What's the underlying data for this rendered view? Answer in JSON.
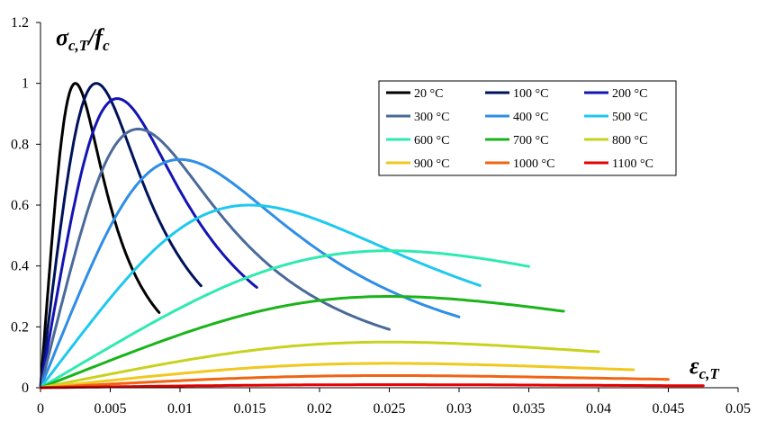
{
  "chart_data": {
    "type": "line",
    "title": "",
    "xlabel": {
      "main": "ε",
      "sub": "c,T"
    },
    "ylabel": {
      "main": "σ",
      "sub": "c,T",
      "rest": "/f",
      "rest_sub": "c"
    },
    "xlim": [
      0,
      0.05
    ],
    "ylim": [
      0,
      1.2
    ],
    "grid": "none",
    "legend_position": "top-right",
    "x_ticks": [
      0,
      0.005,
      0.01,
      0.015,
      0.02,
      0.025,
      0.03,
      0.035,
      0.04,
      0.045,
      0.05
    ],
    "x_tick_labels": [
      "0",
      "0.005",
      "0.01",
      "0.015",
      "0.02",
      "0.025",
      "0.03",
      "0.035",
      "0.04",
      "0.045",
      "0.05"
    ],
    "y_ticks": [
      0,
      0.2,
      0.4,
      0.6,
      0.8,
      1.0,
      1.2
    ],
    "y_tick_labels": [
      "0",
      "0.2",
      "0.4",
      "0.6",
      "0.8",
      "1",
      "1.2"
    ],
    "curve_model": "sigma/fc = 3*(eps/eps_peak)*k / (2 + (eps/eps_peak)^3)",
    "series": [
      {
        "name": "20 °C",
        "color": "#000000",
        "eps_peak": 0.0025,
        "peak": 1.0,
        "eps_end": 0.0085
      },
      {
        "name": "100 °C",
        "color": "#00135a",
        "eps_peak": 0.004,
        "peak": 1.0,
        "eps_end": 0.0115
      },
      {
        "name": "200 °C",
        "color": "#1414b4",
        "eps_peak": 0.0055,
        "peak": 0.95,
        "eps_end": 0.0155
      },
      {
        "name": "300 °C",
        "color": "#4a6a9a",
        "eps_peak": 0.007,
        "peak": 0.85,
        "eps_end": 0.025
      },
      {
        "name": "400 °C",
        "color": "#2e8ee6",
        "eps_peak": 0.01,
        "peak": 0.75,
        "eps_end": 0.03
      },
      {
        "name": "500 °C",
        "color": "#1ec8f0",
        "eps_peak": 0.015,
        "peak": 0.6,
        "eps_end": 0.0315
      },
      {
        "name": "600 °C",
        "color": "#2eeab0",
        "eps_peak": 0.025,
        "peak": 0.45,
        "eps_end": 0.035
      },
      {
        "name": "700 °C",
        "color": "#1ab41a",
        "eps_peak": 0.025,
        "peak": 0.3,
        "eps_end": 0.0375
      },
      {
        "name": "800 °C",
        "color": "#c8d21e",
        "eps_peak": 0.025,
        "peak": 0.15,
        "eps_end": 0.04
      },
      {
        "name": "900 °C",
        "color": "#f0c81e",
        "eps_peak": 0.025,
        "peak": 0.08,
        "eps_end": 0.0425
      },
      {
        "name": "1000 °C",
        "color": "#f06414",
        "eps_peak": 0.025,
        "peak": 0.04,
        "eps_end": 0.045
      },
      {
        "name": "1100 °C",
        "color": "#e60000",
        "eps_peak": 0.025,
        "peak": 0.01,
        "eps_end": 0.0475
      }
    ]
  }
}
